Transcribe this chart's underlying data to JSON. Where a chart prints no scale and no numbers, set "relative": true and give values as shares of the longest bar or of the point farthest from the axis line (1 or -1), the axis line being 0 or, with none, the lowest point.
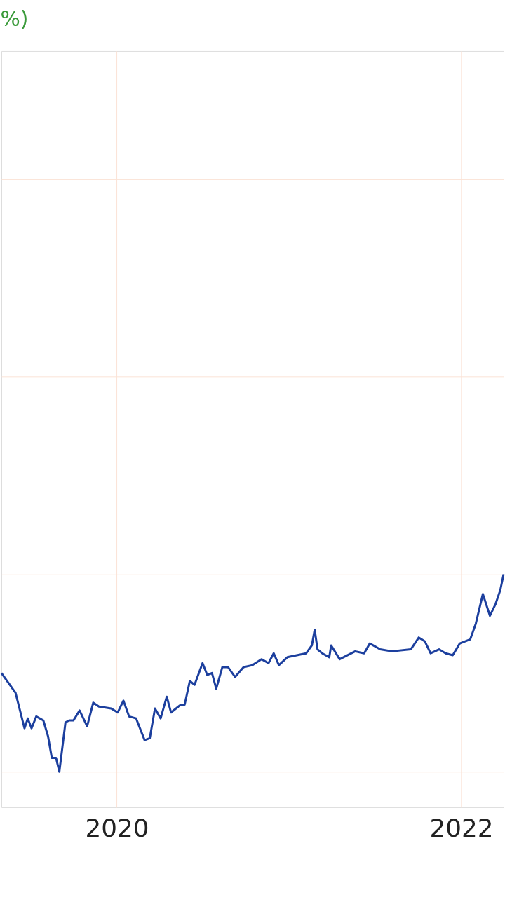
{
  "chart_data": {
    "type": "line",
    "title": "%)",
    "relative": true,
    "grid": true,
    "xlim": [
      "2019-05-01",
      "2022-04-01"
    ],
    "xticks": [
      "2020",
      "2022"
    ],
    "x": [
      "2019-05-01",
      "2019-05-31",
      "2019-06-19",
      "2019-06-26",
      "2019-07-04",
      "2019-07-14",
      "2019-07-29",
      "2019-08-08",
      "2019-08-16",
      "2019-08-25",
      "2019-09-01",
      "2019-09-14",
      "2019-09-22",
      "2019-10-01",
      "2019-10-14",
      "2019-10-30",
      "2019-11-12",
      "2019-11-24",
      "2019-12-20",
      "2020-01-03",
      "2020-01-15",
      "2020-01-27",
      "2020-02-11",
      "2020-02-29",
      "2020-03-11",
      "2020-03-22",
      "2020-04-03",
      "2020-04-16",
      "2020-04-25",
      "2020-05-16",
      "2020-05-24",
      "2020-06-04",
      "2020-06-14",
      "2020-07-01",
      "2020-07-11",
      "2020-07-21",
      "2020-07-30",
      "2020-08-12",
      "2020-08-24",
      "2020-09-08",
      "2020-09-26",
      "2020-10-15",
      "2020-11-03",
      "2020-11-18",
      "2020-11-29",
      "2020-12-10",
      "2020-12-28",
      "2021-02-06",
      "2021-02-18",
      "2021-02-24",
      "2021-03-02",
      "2021-03-12",
      "2021-03-27",
      "2021-03-31",
      "2021-04-18",
      "2021-05-21",
      "2021-06-09",
      "2021-06-21",
      "2021-07-13",
      "2021-08-07",
      "2021-09-16",
      "2021-10-03",
      "2021-10-16",
      "2021-10-28",
      "2021-11-15",
      "2021-11-29",
      "2021-12-14",
      "2021-12-29",
      "2022-01-20",
      "2022-02-01",
      "2022-02-16",
      "2022-03-03",
      "2022-03-15",
      "2022-03-25",
      "2022-04-01"
    ],
    "series": [
      {
        "color": "#1c3f9e",
        "values": [
          0.5,
          0.4,
          0.22,
          0.27,
          0.22,
          0.28,
          0.26,
          0.18,
          0.07,
          0.07,
          0.0,
          0.25,
          0.26,
          0.26,
          0.31,
          0.23,
          0.35,
          0.33,
          0.32,
          0.3,
          0.36,
          0.28,
          0.27,
          0.16,
          0.17,
          0.32,
          0.27,
          0.38,
          0.3,
          0.34,
          0.34,
          0.46,
          0.44,
          0.55,
          0.49,
          0.5,
          0.42,
          0.53,
          0.53,
          0.48,
          0.53,
          0.54,
          0.57,
          0.55,
          0.6,
          0.54,
          0.58,
          0.6,
          0.64,
          0.72,
          0.62,
          0.6,
          0.58,
          0.64,
          0.57,
          0.61,
          0.6,
          0.65,
          0.62,
          0.61,
          0.62,
          0.68,
          0.66,
          0.6,
          0.62,
          0.6,
          0.59,
          0.65,
          0.67,
          0.75,
          0.9,
          0.79,
          0.85,
          0.92,
          1.0
        ]
      }
    ]
  }
}
